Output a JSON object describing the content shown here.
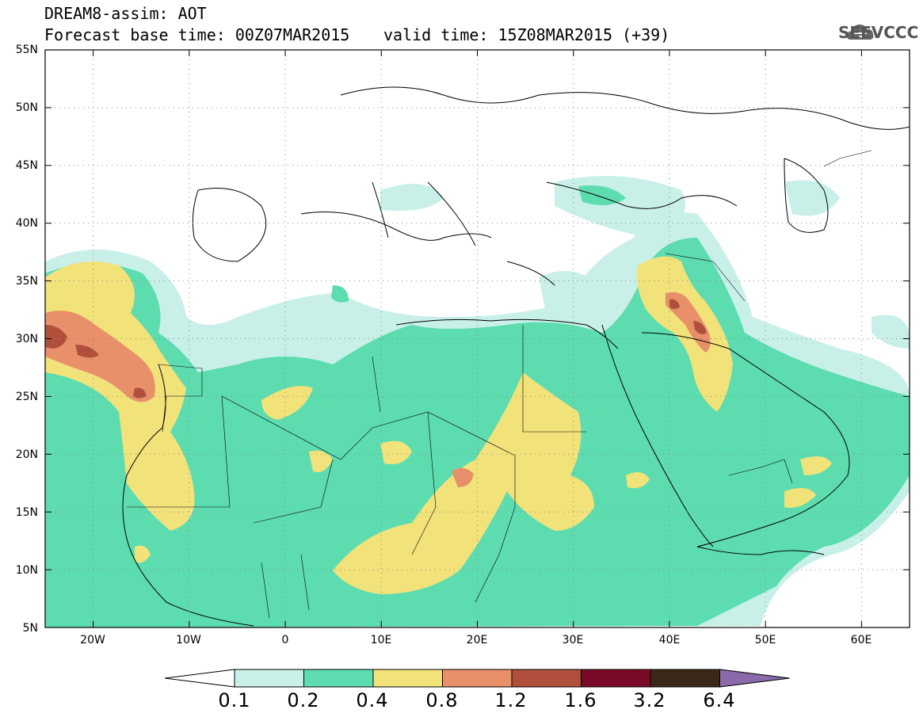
{
  "header": {
    "line1": "DREAM8-assim: AOT",
    "line2_left": "Forecast base time: 00Z07MAR2015",
    "line2_right": "valid time: 15Z08MAR2015 (+39)",
    "logo_text": "SEEVCCC",
    "logo_icon": "cloud-icon"
  },
  "map": {
    "lat_labels": [
      "55N",
      "50N",
      "45N",
      "40N",
      "35N",
      "30N",
      "25N",
      "20N",
      "15N",
      "10N",
      "5N"
    ],
    "lon_labels": [
      "20W",
      "10W",
      "0",
      "10E",
      "20E",
      "30E",
      "40E",
      "50E",
      "60E"
    ],
    "lon_range": [
      -25,
      65
    ],
    "lat_range": [
      5,
      55
    ]
  },
  "colorbar": {
    "labels": [
      "0.1",
      "0.2",
      "0.4",
      "0.8",
      "1.2",
      "1.6",
      "3.2",
      "6.4"
    ],
    "colors": [
      "#ffffff",
      "#c8f0e8",
      "#5ddcb0",
      "#f2e27a",
      "#e8906a",
      "#b0503c",
      "#7a0a28",
      "#3c2818",
      "#8a6aaa"
    ]
  }
}
